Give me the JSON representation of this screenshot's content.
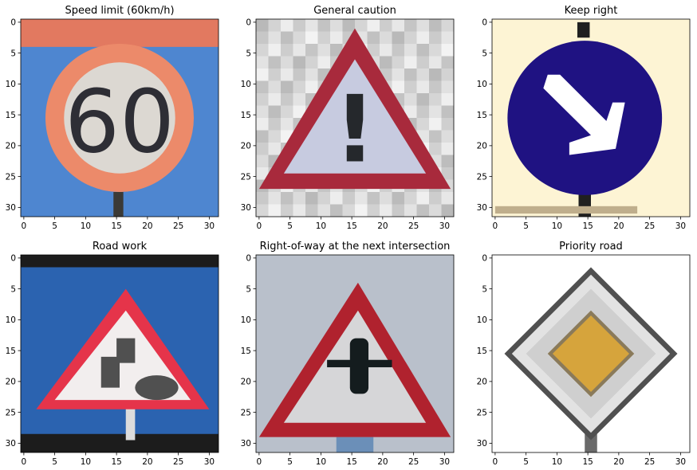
{
  "chart_data": [
    {
      "type": "image",
      "title": "Speed limit (60km/h)",
      "xticks": [
        0,
        5,
        10,
        15,
        20,
        25,
        30
      ],
      "yticks": [
        0,
        5,
        10,
        15,
        20,
        25,
        30
      ],
      "xlim": [
        -0.5,
        31.5
      ],
      "ylim": [
        31.5,
        -0.5
      ],
      "sign_text": "60",
      "colors": {
        "sky": "#4e86d0",
        "ring": "#ec8a6a",
        "inner": "#dcd8d2",
        "digits": "#2e2e35",
        "bar": "#e27960",
        "post": "#3b3a36"
      }
    },
    {
      "type": "image",
      "title": "General caution",
      "xticks": [
        0,
        5,
        10,
        15,
        20,
        25,
        30
      ],
      "yticks": [
        0,
        5,
        10,
        15,
        20,
        25,
        30
      ],
      "xlim": [
        -0.5,
        31.5
      ],
      "ylim": [
        31.5,
        -0.5
      ],
      "sign_text": "!",
      "colors": {
        "bg": "#cfcfcf",
        "border": "#a82a3c",
        "fill": "#c7cbe0",
        "mark": "#25282c"
      }
    },
    {
      "type": "image",
      "title": "Keep right",
      "xticks": [
        0,
        5,
        10,
        15,
        20,
        25,
        30
      ],
      "yticks": [
        0,
        5,
        10,
        15,
        20,
        25,
        30
      ],
      "xlim": [
        -0.5,
        31.5
      ],
      "ylim": [
        31.5,
        -0.5
      ],
      "colors": {
        "bg": "#fdf4d4",
        "disc": "#1f1282",
        "arrow": "#ffffff",
        "post": "#202020"
      }
    },
    {
      "type": "image",
      "title": "Road work",
      "xticks": [
        0,
        5,
        10,
        15,
        20,
        25,
        30
      ],
      "yticks": [
        0,
        5,
        10,
        15,
        20,
        25,
        30
      ],
      "xlim": [
        -0.5,
        31.5
      ],
      "ylim": [
        31.5,
        -0.5
      ],
      "colors": {
        "sky": "#2b63b0",
        "band": "#1c1c1c",
        "border": "#e5344a",
        "fill": "#f2eeee",
        "figure": "#505050"
      }
    },
    {
      "type": "image",
      "title": "Right-of-way at the next intersection",
      "xticks": [
        0,
        5,
        10,
        15,
        20,
        25,
        30
      ],
      "yticks": [
        0,
        5,
        10,
        15,
        20,
        25,
        30
      ],
      "xlim": [
        -0.5,
        31.5
      ],
      "ylim": [
        31.5,
        -0.5
      ],
      "colors": {
        "sky": "#b9c0cb",
        "border": "#b0222e",
        "fill": "#d6d6d8",
        "cross": "#141c1e"
      }
    },
    {
      "type": "image",
      "title": "Priority road",
      "xticks": [
        0,
        5,
        10,
        15,
        20,
        25,
        30
      ],
      "yticks": [
        0,
        5,
        10,
        15,
        20,
        25,
        30
      ],
      "xlim": [
        -0.5,
        31.5
      ],
      "ylim": [
        31.5,
        -0.5
      ],
      "colors": {
        "bg": "#ffffff",
        "outer": "#505050",
        "white": "#e2e2e2",
        "yellow": "#d6a43c"
      }
    }
  ]
}
